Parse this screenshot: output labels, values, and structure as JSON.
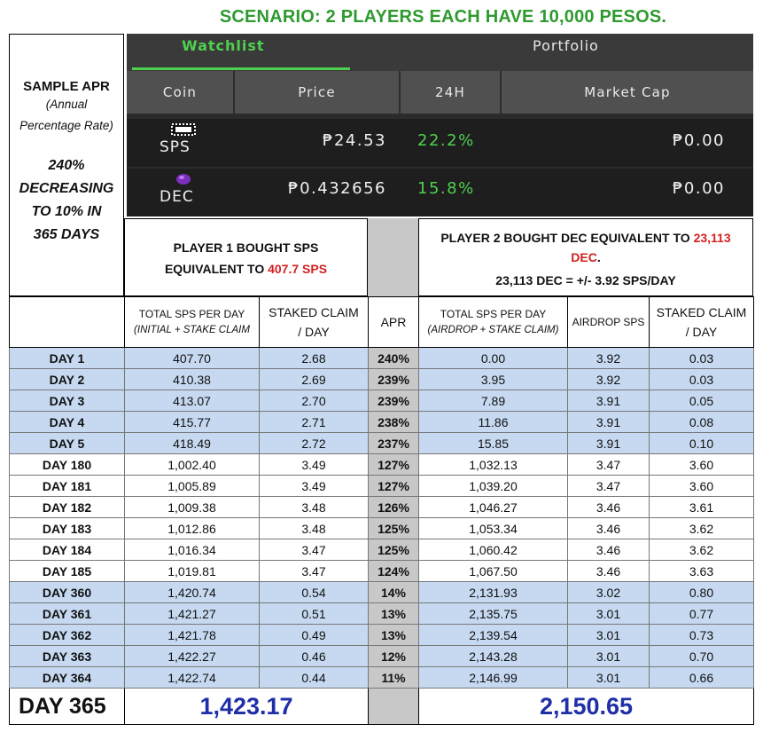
{
  "title": "SCENARIO: 2 PLAYERS EACH HAVE 10,000 PESOS.",
  "info": {
    "heading": "SAMPLE APR",
    "sub1": "(Annual",
    "sub2": "Percentage Rate)",
    "big1": "240%",
    "big2": "DECREASING",
    "big3": "TO 10% IN",
    "big4": "365 DAYS"
  },
  "app": {
    "tabs": {
      "active": "Watchlist",
      "inactive": "Portfolio"
    },
    "columns": {
      "coin": "Coin",
      "price": "Price",
      "change": "24H",
      "mcap": "Market Cap"
    },
    "rows": [
      {
        "coin": "SPS",
        "price": "₱24.53",
        "change": "22.2%",
        "mcap": "₱0.00",
        "icon": "sps-logo-icon"
      },
      {
        "coin": "DEC",
        "price": "₱0.432656",
        "change": "15.8%",
        "mcap": "₱0.00",
        "icon": "dec-gem-icon"
      }
    ],
    "colors": {
      "green": "#4fd04f",
      "bg": "#1e1e1e"
    }
  },
  "player1": {
    "line1": "PLAYER 1 BOUGHT SPS",
    "line2a": "EQUIVALENT TO ",
    "line2b": "407.7 SPS"
  },
  "player2": {
    "line1a": "PLAYER 2 BOUGHT DEC EQUIVALENT TO ",
    "line1b": "23,113",
    "line2": "DEC",
    "line2dot": ".",
    "line3": "23,113 DEC = +/- 3.92 SPS/DAY"
  },
  "headers": {
    "p1_total_a": "TOTAL SPS PER DAY",
    "p1_total_b": "(INITIAL + STAKE CLAIM",
    "p1_claim_a": "STAKED CLAIM",
    "p1_claim_b": "/ DAY",
    "apr": "APR",
    "p2_total_a": "TOTAL SPS PER DAY",
    "p2_total_b": "(AIRDROP + STAKE CLAIM)",
    "p2_airdrop": "AIRDROP SPS",
    "p2_claim_a": "STAKED CLAIM",
    "p2_claim_b": "/ DAY"
  },
  "rows": [
    {
      "day": "DAY 1",
      "p1_total": "407.70",
      "p1_claim": "2.68",
      "apr": "240%",
      "p2_total": "0.00",
      "p2_airdrop": "3.92",
      "p2_claim": "0.03",
      "shade": "blue"
    },
    {
      "day": "DAY 2",
      "p1_total": "410.38",
      "p1_claim": "2.69",
      "apr": "239%",
      "p2_total": "3.95",
      "p2_airdrop": "3.92",
      "p2_claim": "0.03",
      "shade": "blue"
    },
    {
      "day": "DAY 3",
      "p1_total": "413.07",
      "p1_claim": "2.70",
      "apr": "239%",
      "p2_total": "7.89",
      "p2_airdrop": "3.91",
      "p2_claim": "0.05",
      "shade": "blue"
    },
    {
      "day": "DAY 4",
      "p1_total": "415.77",
      "p1_claim": "2.71",
      "apr": "238%",
      "p2_total": "11.86",
      "p2_airdrop": "3.91",
      "p2_claim": "0.08",
      "shade": "blue"
    },
    {
      "day": "DAY 5",
      "p1_total": "418.49",
      "p1_claim": "2.72",
      "apr": "237%",
      "p2_total": "15.85",
      "p2_airdrop": "3.91",
      "p2_claim": "0.10",
      "shade": "blue"
    },
    {
      "day": "DAY 180",
      "p1_total": "1,002.40",
      "p1_claim": "3.49",
      "apr": "127%",
      "p2_total": "1,032.13",
      "p2_airdrop": "3.47",
      "p2_claim": "3.60",
      "shade": "white"
    },
    {
      "day": "DAY 181",
      "p1_total": "1,005.89",
      "p1_claim": "3.49",
      "apr": "127%",
      "p2_total": "1,039.20",
      "p2_airdrop": "3.47",
      "p2_claim": "3.60",
      "shade": "white"
    },
    {
      "day": "DAY 182",
      "p1_total": "1,009.38",
      "p1_claim": "3.48",
      "apr": "126%",
      "p2_total": "1,046.27",
      "p2_airdrop": "3.46",
      "p2_claim": "3.61",
      "shade": "white"
    },
    {
      "day": "DAY 183",
      "p1_total": "1,012.86",
      "p1_claim": "3.48",
      "apr": "125%",
      "p2_total": "1,053.34",
      "p2_airdrop": "3.46",
      "p2_claim": "3.62",
      "shade": "white"
    },
    {
      "day": "DAY 184",
      "p1_total": "1,016.34",
      "p1_claim": "3.47",
      "apr": "125%",
      "p2_total": "1,060.42",
      "p2_airdrop": "3.46",
      "p2_claim": "3.62",
      "shade": "white"
    },
    {
      "day": "DAY 185",
      "p1_total": "1,019.81",
      "p1_claim": "3.47",
      "apr": "124%",
      "p2_total": "1,067.50",
      "p2_airdrop": "3.46",
      "p2_claim": "3.63",
      "shade": "white"
    },
    {
      "day": "DAY 360",
      "p1_total": "1,420.74",
      "p1_claim": "0.54",
      "apr": "14%",
      "p2_total": "2,131.93",
      "p2_airdrop": "3.02",
      "p2_claim": "0.80",
      "shade": "blue"
    },
    {
      "day": "DAY 361",
      "p1_total": "1,421.27",
      "p1_claim": "0.51",
      "apr": "13%",
      "p2_total": "2,135.75",
      "p2_airdrop": "3.01",
      "p2_claim": "0.77",
      "shade": "blue"
    },
    {
      "day": "DAY 362",
      "p1_total": "1,421.78",
      "p1_claim": "0.49",
      "apr": "13%",
      "p2_total": "2,139.54",
      "p2_airdrop": "3.01",
      "p2_claim": "0.73",
      "shade": "blue"
    },
    {
      "day": "DAY 363",
      "p1_total": "1,422.27",
      "p1_claim": "0.46",
      "apr": "12%",
      "p2_total": "2,143.28",
      "p2_airdrop": "3.01",
      "p2_claim": "0.70",
      "shade": "blue"
    },
    {
      "day": "DAY 364",
      "p1_total": "1,422.74",
      "p1_claim": "0.44",
      "apr": "11%",
      "p2_total": "2,146.99",
      "p2_airdrop": "3.01",
      "p2_claim": "0.66",
      "shade": "blue"
    }
  ],
  "final": {
    "day": "DAY 365",
    "p1_total": "1,423.17",
    "p2_total": "2,150.65"
  },
  "colors": {
    "row_blue": "#c6d9f1",
    "apr_gray": "#c8c8c8",
    "title_green": "#2f9a2f",
    "red": "#d42020",
    "total_blue": "#1f2fa8"
  }
}
